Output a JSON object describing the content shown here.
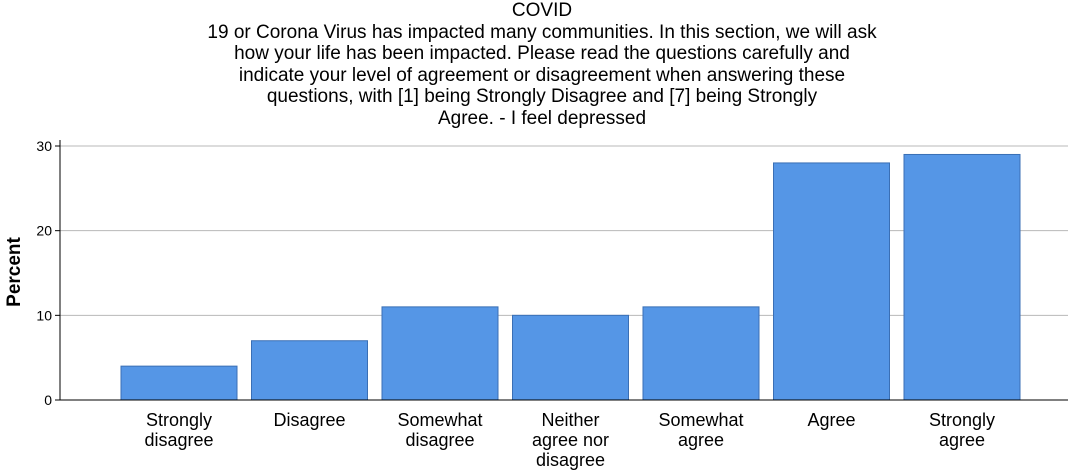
{
  "chart_data": {
    "type": "bar",
    "title": "COVID\n19 or Corona Virus has impacted many communities. In this section, we will ask\nhow your life has been impacted. Please read the questions carefully and\nindicate your level of agreement or disagreement when answering these\nquestions, with [1] being Strongly Disagree and [7] being Strongly\nAgree. - I feel depressed",
    "xlabel": "",
    "ylabel": "Percent",
    "categories": [
      "Strongly disagree",
      "Disagree",
      "Somewhat disagree",
      "Neither agree nor disagree",
      "Somewhat agree",
      "Agree",
      "Strongly agree"
    ],
    "category_label_lines": [
      [
        "Strongly",
        "disagree"
      ],
      [
        "Disagree"
      ],
      [
        "Somewhat",
        "disagree"
      ],
      [
        "Neither",
        "agree nor",
        "disagree"
      ],
      [
        "Somewhat",
        "agree"
      ],
      [
        "Agree"
      ],
      [
        "Strongly",
        "agree"
      ]
    ],
    "values": [
      4,
      7,
      11,
      10,
      11,
      28,
      29
    ],
    "ylim": [
      0,
      30
    ],
    "yticks": [
      0,
      10,
      20,
      30
    ],
    "grid": true,
    "legend": "none",
    "bar_color": "#5596e6",
    "bar_edge_color": "#3a6fb5"
  }
}
